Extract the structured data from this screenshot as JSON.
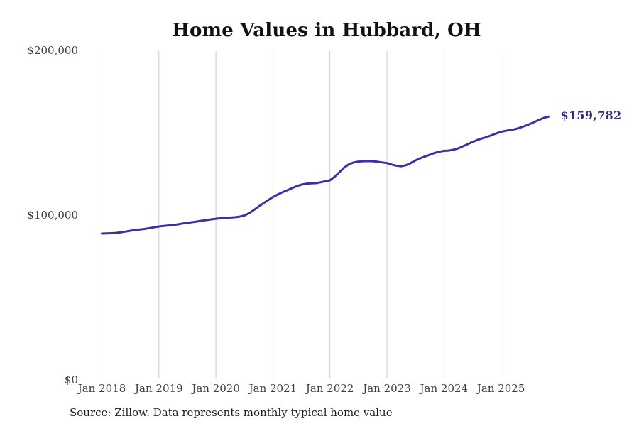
{
  "title": "Home Values in Hubbard, OH",
  "source_note": "Source: Zillow. Data represents monthly typical home value",
  "annotation": {
    "end_label": "$159,782"
  },
  "colors": {
    "line": "#3832a2",
    "annotation": "#2e2c85",
    "gridline": "#cccccc",
    "axis_label": "#3d3d3d"
  },
  "chart_data": {
    "type": "line",
    "title": "Home Values in Hubbard, OH",
    "xlabel": "",
    "ylabel": "",
    "ylim": [
      0,
      200000
    ],
    "grid": "vertical-only",
    "legend": "none",
    "y_ticks": [
      {
        "value": 0,
        "label": "$0"
      },
      {
        "value": 100000,
        "label": "$100,000"
      },
      {
        "value": 200000,
        "label": "$200,000"
      }
    ],
    "x_ticks": [
      "Jan 2018",
      "Jan 2019",
      "Jan 2020",
      "Jan 2021",
      "Jan 2022",
      "Jan 2023",
      "Jan 2024",
      "Jan 2025"
    ],
    "series": [
      {
        "name": "Monthly typical home value",
        "final_value": 159782,
        "months": [
          "2018-01",
          "2018-02",
          "2018-03",
          "2018-04",
          "2018-05",
          "2018-06",
          "2018-07",
          "2018-08",
          "2018-09",
          "2018-10",
          "2018-11",
          "2018-12",
          "2019-01",
          "2019-02",
          "2019-03",
          "2019-04",
          "2019-05",
          "2019-06",
          "2019-07",
          "2019-08",
          "2019-09",
          "2019-10",
          "2019-11",
          "2019-12",
          "2020-01",
          "2020-02",
          "2020-03",
          "2020-04",
          "2020-05",
          "2020-06",
          "2020-07",
          "2020-08",
          "2020-09",
          "2020-10",
          "2020-11",
          "2020-12",
          "2021-01",
          "2021-02",
          "2021-03",
          "2021-04",
          "2021-05",
          "2021-06",
          "2021-07",
          "2021-08",
          "2021-09",
          "2021-10",
          "2021-11",
          "2021-12",
          "2022-01",
          "2022-02",
          "2022-03",
          "2022-04",
          "2022-05",
          "2022-06",
          "2022-07",
          "2022-08",
          "2022-09",
          "2022-10",
          "2022-11",
          "2022-12",
          "2023-01",
          "2023-02",
          "2023-03",
          "2023-04",
          "2023-05",
          "2023-06",
          "2023-07",
          "2023-08",
          "2023-09",
          "2023-10",
          "2023-11",
          "2023-12",
          "2024-01",
          "2024-02",
          "2024-03",
          "2024-04",
          "2024-05",
          "2024-06",
          "2024-07",
          "2024-08",
          "2024-09",
          "2024-10",
          "2024-11",
          "2024-12",
          "2025-01",
          "2025-02",
          "2025-03",
          "2025-04",
          "2025-05",
          "2025-06",
          "2025-07",
          "2025-08",
          "2025-09",
          "2025-10",
          "2025-11"
        ],
        "values": [
          88800,
          88900,
          89000,
          89200,
          89600,
          90000,
          90500,
          91000,
          91300,
          91600,
          92100,
          92600,
          93100,
          93400,
          93700,
          94000,
          94400,
          94900,
          95300,
          95700,
          96100,
          96600,
          97000,
          97400,
          97800,
          98100,
          98300,
          98500,
          98700,
          99100,
          99800,
          101200,
          103100,
          105200,
          107200,
          109100,
          111000,
          112500,
          113900,
          115100,
          116400,
          117600,
          118500,
          119100,
          119300,
          119400,
          119900,
          120500,
          121100,
          123300,
          126100,
          128900,
          130900,
          132000,
          132500,
          132700,
          132800,
          132700,
          132400,
          132000,
          131600,
          130700,
          130000,
          129700,
          130300,
          131600,
          133200,
          134500,
          135600,
          136600,
          137700,
          138500,
          139000,
          139200,
          139700,
          140500,
          141800,
          143100,
          144400,
          145600,
          146500,
          147400,
          148500,
          149600,
          150600,
          151200,
          151700,
          152200,
          153100,
          154100,
          155200,
          156500,
          157800,
          159000,
          159782
        ]
      }
    ]
  }
}
